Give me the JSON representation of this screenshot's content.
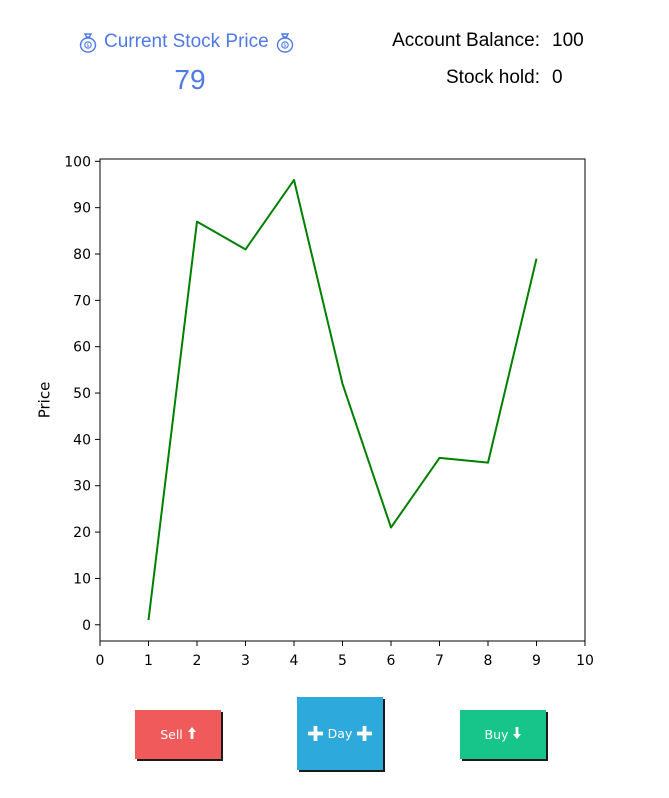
{
  "header": {
    "price_title": "Current Stock Price",
    "price_value": "79",
    "balance_label": "Account Balance:",
    "balance_value": "100",
    "hold_label": "Stock hold:",
    "hold_value": "0",
    "accent_color": "#4f79e6"
  },
  "chart_data": {
    "type": "line",
    "ylabel": "Price",
    "x": [
      1,
      2,
      3,
      4,
      5,
      6,
      7,
      8,
      9
    ],
    "values": [
      1,
      87,
      81,
      96,
      52,
      21,
      36,
      35,
      79
    ],
    "xlim": [
      0,
      10
    ],
    "ylim": [
      -3.5,
      100.5
    ],
    "xticks": [
      "0",
      "1",
      "2",
      "3",
      "4",
      "5",
      "6",
      "7",
      "8",
      "9",
      "10"
    ],
    "yticks": [
      "0",
      "10",
      "20",
      "30",
      "40",
      "50",
      "60",
      "70",
      "80",
      "90",
      "100"
    ],
    "grid": false,
    "line_color": "#008000"
  },
  "buttons": {
    "sell_label": "Sell",
    "sell_icon": "arrow-up-icon",
    "day_label": "Day",
    "day_icon": "plus-icon",
    "buy_label": "Buy",
    "buy_icon": "arrow-down-icon",
    "sell_color": "#f05a5a",
    "day_color": "#2ea9dc",
    "buy_color": "#17c48a"
  }
}
